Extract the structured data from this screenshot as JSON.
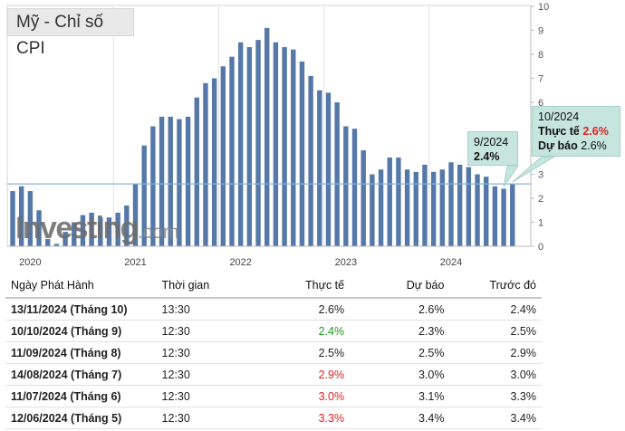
{
  "title": "Mỹ - Chỉ số CPI",
  "watermark": {
    "brand": "Investing",
    "suffix": ".com"
  },
  "chart_data": {
    "type": "bar",
    "y_range": [
      0,
      10
    ],
    "y_ticks": [
      "0",
      "1",
      "2",
      "3",
      "4",
      "5",
      "6",
      "7",
      "8",
      "9",
      "10"
    ],
    "x_tick_labels": [
      "2020",
      "2021",
      "2022",
      "2023",
      "2024"
    ],
    "reference_line": 2.6,
    "values": [
      2.3,
      2.5,
      2.3,
      1.5,
      0.3,
      0.1,
      0.6,
      1.0,
      1.3,
      1.4,
      1.2,
      1.2,
      1.4,
      1.7,
      2.6,
      4.2,
      5.0,
      5.4,
      5.4,
      5.3,
      5.4,
      6.2,
      6.8,
      7.0,
      7.5,
      7.9,
      8.5,
      8.3,
      8.6,
      9.1,
      8.5,
      8.3,
      8.2,
      7.7,
      7.1,
      6.5,
      6.4,
      6.0,
      5.0,
      4.9,
      4.0,
      3.0,
      3.2,
      3.7,
      3.7,
      3.2,
      3.1,
      3.4,
      3.1,
      3.2,
      3.5,
      3.4,
      3.3,
      3.0,
      2.9,
      2.5,
      2.4,
      2.6
    ],
    "year_start_index": [
      0,
      12,
      24,
      36,
      48
    ]
  },
  "callouts": {
    "sep": {
      "label": "9/2024",
      "value": "2.4%"
    },
    "oct": {
      "label": "10/2024",
      "actual_label": "Thực tế",
      "actual": "2.6%",
      "forecast_label": "Dự báo",
      "forecast": "2.6%"
    }
  },
  "table": {
    "headers": [
      "Ngày Phát Hành",
      "Thời gian",
      "Thực tế",
      "Dự báo",
      "Trước đó"
    ],
    "rows": [
      {
        "date": "13/11/2024 (Tháng 10)",
        "time": "13:30",
        "actual": "2.6%",
        "actual_color": "",
        "forecast": "2.6%",
        "previous": "2.4%"
      },
      {
        "date": "10/10/2024 (Tháng 9)",
        "time": "12:30",
        "actual": "2.4%",
        "actual_color": "green",
        "forecast": "2.3%",
        "previous": "2.5%"
      },
      {
        "date": "11/09/2024 (Tháng 8)",
        "time": "12:30",
        "actual": "2.5%",
        "actual_color": "",
        "forecast": "2.5%",
        "previous": "2.9%"
      },
      {
        "date": "14/08/2024 (Tháng 7)",
        "time": "12:30",
        "actual": "2.9%",
        "actual_color": "red",
        "forecast": "3.0%",
        "previous": "3.0%"
      },
      {
        "date": "11/07/2024 (Tháng 6)",
        "time": "12:30",
        "actual": "3.0%",
        "actual_color": "red",
        "forecast": "3.1%",
        "previous": "3.3%"
      },
      {
        "date": "12/06/2024 (Tháng 5)",
        "time": "12:30",
        "actual": "3.3%",
        "actual_color": "red",
        "forecast": "3.4%",
        "previous": "3.4%"
      }
    ]
  }
}
